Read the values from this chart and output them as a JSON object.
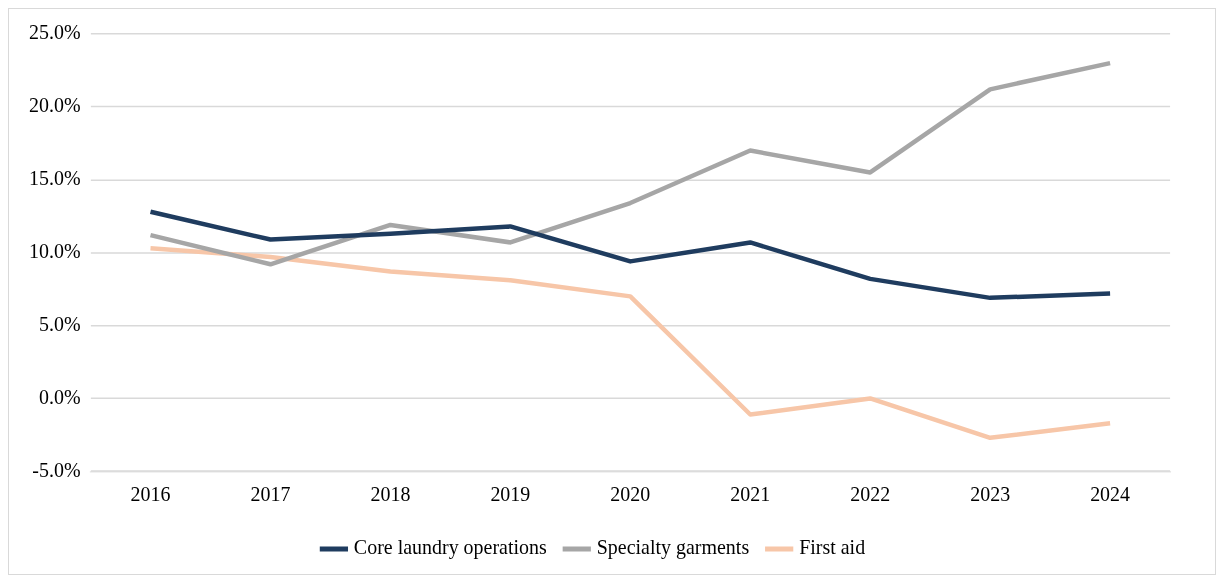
{
  "chart_data": {
    "type": "line",
    "categories": [
      "2016",
      "2017",
      "2018",
      "2019",
      "2020",
      "2021",
      "2022",
      "2023",
      "2024"
    ],
    "series": [
      {
        "name": "Core laundry operations",
        "color": "#1f3c5f",
        "values": [
          12.8,
          10.9,
          11.3,
          11.8,
          9.4,
          10.7,
          8.2,
          6.9,
          7.2
        ]
      },
      {
        "name": "Specialty garments",
        "color": "#a6a6a6",
        "values": [
          11.2,
          9.2,
          11.9,
          10.7,
          13.4,
          17.0,
          15.5,
          21.2,
          23.0
        ]
      },
      {
        "name": "First aid",
        "color": "#f7c6a8",
        "values": [
          10.3,
          9.7,
          8.7,
          8.1,
          7.0,
          -1.1,
          0.0,
          -2.7,
          -1.7
        ]
      }
    ],
    "ylim": [
      -5,
      25
    ],
    "yticks": [
      {
        "value": -5,
        "label": "-5.0%"
      },
      {
        "value": 0,
        "label": "0.0%"
      },
      {
        "value": 5,
        "label": "5.0%"
      },
      {
        "value": 10,
        "label": "10.0%"
      },
      {
        "value": 15,
        "label": "15.0%"
      },
      {
        "value": 20,
        "label": "20.0%"
      },
      {
        "value": 25,
        "label": "25.0%"
      }
    ],
    "grid": "y",
    "legend": "bottom",
    "marker": "none",
    "line_style": "solid"
  }
}
